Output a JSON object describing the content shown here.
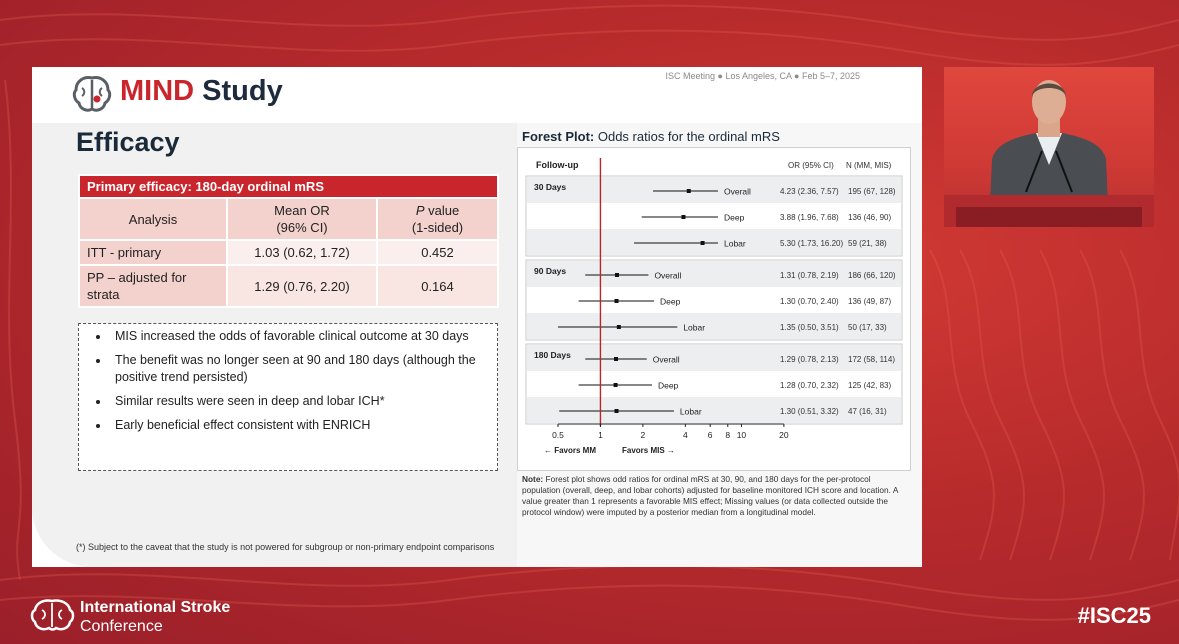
{
  "slide": {
    "logo": {
      "mind": "MIND",
      "study": "Study"
    },
    "meeting_line": "ISC Meeting ● Los Angeles, CA ● Feb 5–7, 2025",
    "section_title": "Efficacy",
    "table": {
      "caption": "Primary efficacy: 180-day ordinal mRS",
      "headers": [
        "Analysis",
        "Mean OR (96% CI)",
        "P value (1-sided)"
      ],
      "header_lines": {
        "col2_a": "Mean OR",
        "col2_b": "(96% CI)",
        "col3_italic": "P",
        "col3_a": " value",
        "col3_b": "(1-sided)"
      },
      "rows": [
        [
          "ITT - primary",
          "1.03 (0.62, 1.72)",
          "0.452"
        ],
        [
          "PP – adjusted for strata",
          "1.29 (0.76, 2.20)",
          "0.164"
        ]
      ],
      "row1_lines": {
        "a": "PP – adjusted for",
        "b": "strata"
      }
    },
    "bullets": [
      "MIS increased the odds of favorable clinical outcome at 30 days",
      "The benefit was no longer seen at 90 and 180 days (although the positive trend persisted)",
      "Similar results were seen in deep and lobar ICH*",
      "Early beneficial effect consistent with ENRICH"
    ],
    "footnote": "(*) Subject to the caveat that the study is not powered for subgroup or non-primary endpoint comparisons",
    "forest_title_bold": "Forest Plot:",
    "forest_title_rest": " Odds ratios for the ordinal mRS",
    "forest": {
      "col_followup": "Follow-up",
      "col_or": "OR (95% CI)",
      "col_n": "N (MM, MIS)",
      "groups": [
        {
          "label": "30 Days",
          "rows": [
            {
              "cohort": "Overall",
              "or": 4.23,
              "lo": 2.36,
              "hi": 7.57,
              "or_text": "4.23 (2.36, 7.57)",
              "n_text": "195 (67, 128)"
            },
            {
              "cohort": "Deep",
              "or": 3.88,
              "lo": 1.96,
              "hi": 7.68,
              "or_text": "3.88 (1.96, 7.68)",
              "n_text": "136 (46, 90)"
            },
            {
              "cohort": "Lobar",
              "or": 5.3,
              "lo": 1.73,
              "hi": 16.2,
              "or_text": "5.30 (1.73, 16.20)",
              "n_text": "59 (21, 38)"
            }
          ]
        },
        {
          "label": "90 Days",
          "rows": [
            {
              "cohort": "Overall",
              "or": 1.31,
              "lo": 0.78,
              "hi": 2.19,
              "or_text": "1.31 (0.78, 2.19)",
              "n_text": "186 (66, 120)"
            },
            {
              "cohort": "Deep",
              "or": 1.3,
              "lo": 0.7,
              "hi": 2.4,
              "or_text": "1.30 (0.70, 2.40)",
              "n_text": "136 (49, 87)"
            },
            {
              "cohort": "Lobar",
              "or": 1.35,
              "lo": 0.5,
              "hi": 3.51,
              "or_text": "1.35 (0.50, 3.51)",
              "n_text": "50 (17, 33)"
            }
          ]
        },
        {
          "label": "180 Days",
          "rows": [
            {
              "cohort": "Overall",
              "or": 1.29,
              "lo": 0.78,
              "hi": 2.13,
              "or_text": "1.29 (0.78, 2.13)",
              "n_text": "172 (58, 114)"
            },
            {
              "cohort": "Deep",
              "or": 1.28,
              "lo": 0.7,
              "hi": 2.32,
              "or_text": "1.28 (0.70, 2.32)",
              "n_text": "125 (42, 83)"
            },
            {
              "cohort": "Lobar",
              "or": 1.3,
              "lo": 0.51,
              "hi": 3.32,
              "or_text": "1.30 (0.51, 3.32)",
              "n_text": "47 (16, 31)"
            }
          ]
        }
      ],
      "ticks": [
        0.5,
        1,
        2,
        4,
        6,
        8,
        10,
        20
      ],
      "tick_labels": [
        "0.5",
        "1",
        "2",
        "4",
        "6",
        "8",
        "10",
        "20"
      ],
      "favors_mm": "← Favors MM",
      "favors_mis": "Favors MIS →",
      "reference_color": "#b3262b"
    },
    "note_bold": "Note:",
    "note_text": " Forest plot shows odd ratios for ordinal mRS at 30, 90, and 180 days for the per-protocol population (overall, deep, and lobar cohorts) adjusted for baseline monitored ICH score and location. A value greater than 1 represents a favorable MIS effect; Missing values (or data collected outside the protocol window) were imputed by a posterior median from a longitudinal model."
  },
  "conference": {
    "name_line1": "International Stroke",
    "name_line2": "Conference",
    "hashtag": "#ISC25"
  },
  "colors": {
    "brand_red": "#c9252c",
    "navy": "#1e2b3c"
  }
}
